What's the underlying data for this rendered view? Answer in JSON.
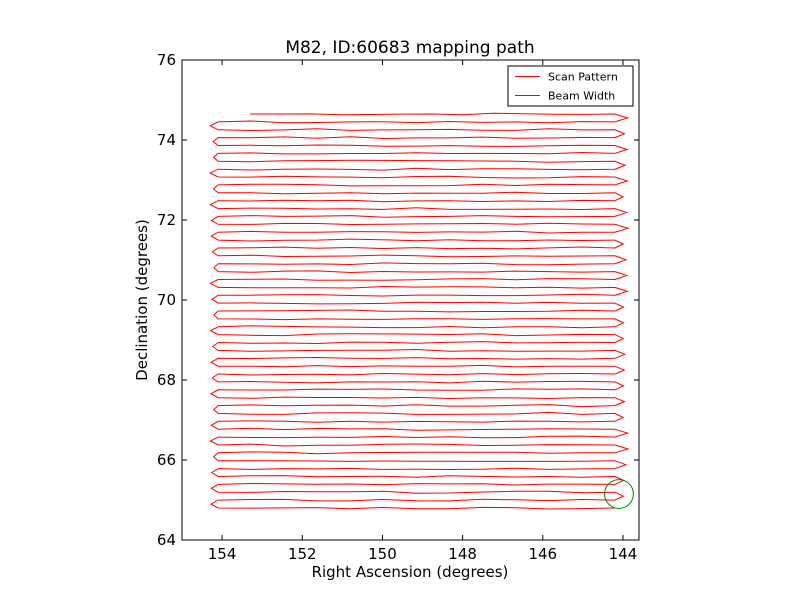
{
  "chart_data": {
    "type": "line",
    "title": "M82, ID:60683 mapping path",
    "xlabel": "Right Ascension (degrees)",
    "ylabel": "Declination (degrees)",
    "xlim": [
      155.0,
      143.6
    ],
    "ylim": [
      64,
      76
    ],
    "x_inverted": true,
    "xticks": [
      154,
      152,
      150,
      148,
      146,
      144
    ],
    "yticks": [
      64,
      66,
      68,
      70,
      72,
      74,
      76
    ],
    "grid": false,
    "legend_position": "top-right",
    "legend": [
      {
        "label": "Scan Pattern",
        "color": "#ff0000"
      },
      {
        "label": "Beam Width",
        "color": "#008000"
      }
    ],
    "series": [
      {
        "name": "Scan Pattern",
        "color": "#ff0000",
        "scan_path": {
          "dec_first": 74.65,
          "dec_last": 64.8,
          "ra_start": 153.3,
          "ra_west_turn": 154.15,
          "ra_east_turn": 144.2
        }
      },
      {
        "name": "Beam Width",
        "color": "#008000",
        "circle": {
          "ra_center": 144.1,
          "dec_center": 65.15,
          "radius_deg": 0.36
        }
      }
    ]
  }
}
